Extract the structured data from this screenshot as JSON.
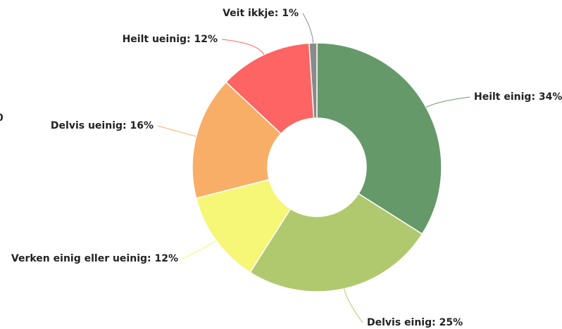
{
  "chart_data": {
    "type": "pie",
    "values": [
      34,
      25,
      12,
      16,
      12,
      1
    ],
    "value_labels": [
      "Heilt einig: 34%",
      "Delvis einig: 25%",
      "Verken einig eller ueinig: 12%",
      "Delvis ueinig: 16%",
      "Heilt ueinig: 12%",
      "Veit ikkje: 1%"
    ],
    "colors": [
      "#66996a",
      "#b0c96e",
      "#f6f677",
      "#f9ae68",
      "#fe6463",
      "#8a8a8a"
    ],
    "edge_text": "0"
  }
}
